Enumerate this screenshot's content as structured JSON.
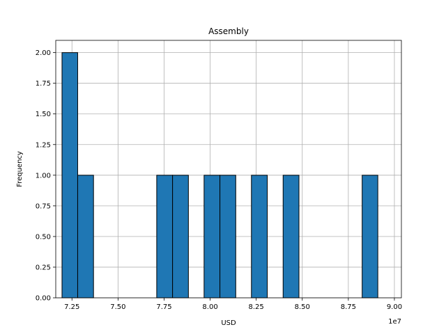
{
  "chart_data": {
    "type": "bar",
    "title": "Assembly",
    "xlabel": "USD",
    "ylabel": "Frequency",
    "x_offset_label": "1e7",
    "bar_color": "#1f77b4",
    "edge_color": "#000000",
    "grid": true,
    "xlim": [
      7.162,
      9.038
    ],
    "ylim": [
      0,
      2.1
    ],
    "xticks": [
      "7.25",
      "7.50",
      "7.75",
      "8.00",
      "8.25",
      "8.50",
      "8.75",
      "9.00"
    ],
    "xtick_values": [
      7.25,
      7.5,
      7.75,
      8.0,
      8.25,
      8.5,
      8.75,
      9.0
    ],
    "yticks": [
      "0.00",
      "0.25",
      "0.50",
      "0.75",
      "1.00",
      "1.25",
      "1.50",
      "1.75",
      "2.00"
    ],
    "ytick_values": [
      0,
      0.25,
      0.5,
      0.75,
      1.0,
      1.25,
      1.5,
      1.75,
      2.0
    ],
    "bins": [
      {
        "x0": 7.196,
        "x1": 7.281,
        "count": 2
      },
      {
        "x0": 7.281,
        "x1": 7.367,
        "count": 1
      },
      {
        "x0": 7.367,
        "x1": 7.453,
        "count": 0
      },
      {
        "x0": 7.453,
        "x1": 7.539,
        "count": 0
      },
      {
        "x0": 7.539,
        "x1": 7.624,
        "count": 0
      },
      {
        "x0": 7.624,
        "x1": 7.71,
        "count": 0
      },
      {
        "x0": 7.71,
        "x1": 7.796,
        "count": 1
      },
      {
        "x0": 7.796,
        "x1": 7.882,
        "count": 1
      },
      {
        "x0": 7.882,
        "x1": 7.967,
        "count": 0
      },
      {
        "x0": 7.967,
        "x1": 8.053,
        "count": 1
      },
      {
        "x0": 8.053,
        "x1": 8.139,
        "count": 1
      },
      {
        "x0": 8.139,
        "x1": 8.224,
        "count": 0
      },
      {
        "x0": 8.224,
        "x1": 8.31,
        "count": 1
      },
      {
        "x0": 8.31,
        "x1": 8.396,
        "count": 0
      },
      {
        "x0": 8.396,
        "x1": 8.482,
        "count": 1
      },
      {
        "x0": 8.482,
        "x1": 8.567,
        "count": 0
      },
      {
        "x0": 8.567,
        "x1": 8.653,
        "count": 0
      },
      {
        "x0": 8.653,
        "x1": 8.739,
        "count": 0
      },
      {
        "x0": 8.739,
        "x1": 8.825,
        "count": 0
      },
      {
        "x0": 8.825,
        "x1": 8.91,
        "count": 1
      }
    ]
  }
}
